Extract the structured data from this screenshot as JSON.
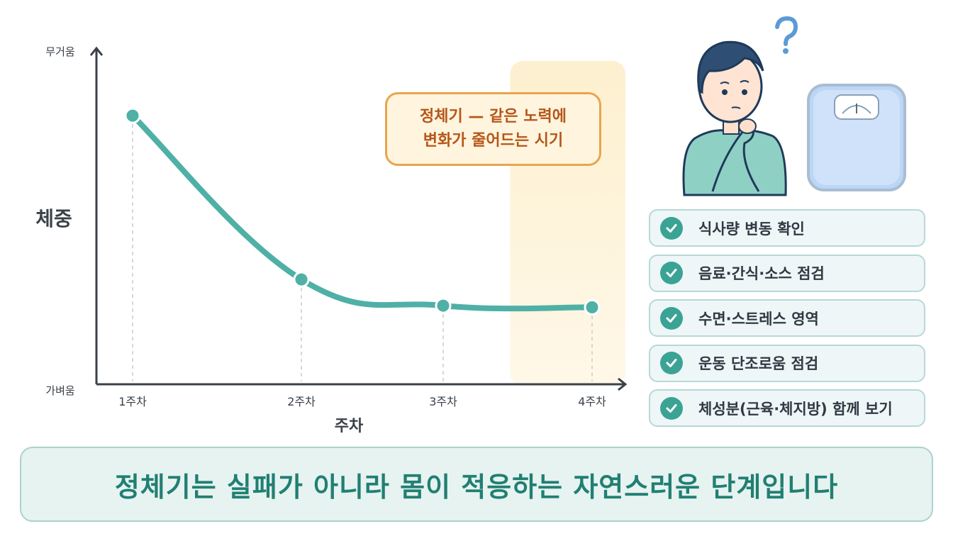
{
  "chart_data": {
    "type": "line",
    "categories": [
      "1주차",
      "2주차",
      "3주차",
      "4주차"
    ],
    "values": [
      82,
      32,
      24,
      23.5
    ],
    "ylim": [
      0,
      100
    ],
    "xlabel": "주차",
    "ylabel": "체중",
    "y_top_label": "무거움",
    "y_bottom_label": "가벼움",
    "highlight_start": 2.45,
    "line_color": "#4fb0a6",
    "highlight_color": "#fdeec6"
  },
  "callout": {
    "line1": "정체기 — 같은 노력에",
    "line2": "변화가 줄어드는 시기"
  },
  "checklist": [
    "식사량 변동 확인",
    "음료·간식·소스 점검",
    "수면·스트레스 영역",
    "운동 단조로움 점검",
    "체성분(근육·체지방) 함께 보기"
  ],
  "illustration": {
    "person": "thinking-person-icon",
    "question": "question-mark-icon",
    "scale": "bathroom-scale-icon"
  },
  "banner": {
    "text": "정체기는 실패가 아니라 몸이 적응하는 자연스러운 단계입니다"
  }
}
